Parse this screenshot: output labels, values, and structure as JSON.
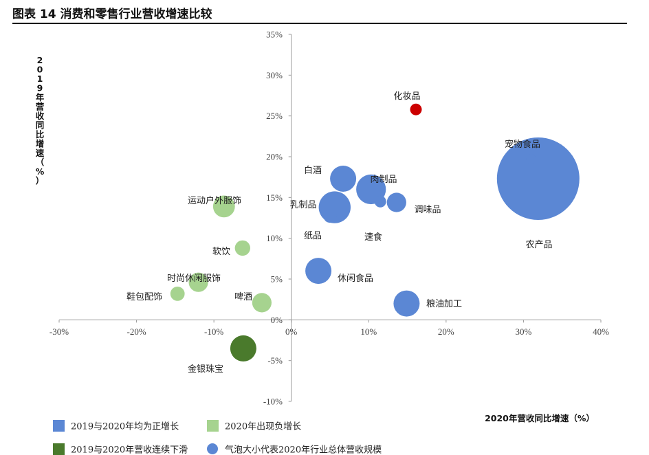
{
  "figure": {
    "title": "图表 14 消费和零售行业营收增速比较"
  },
  "chart_data": {
    "type": "scatter",
    "subtype": "bubble",
    "xlabel": "2020年营收同比增速（%）",
    "ylabel": "2019年营收同比增速（%）",
    "xlim": [
      -30,
      40
    ],
    "ylim": [
      -10,
      35
    ],
    "x_ticks": [
      "-30%",
      "-20%",
      "-10%",
      "0%",
      "10%",
      "20%",
      "30%",
      "40%"
    ],
    "y_ticks": [
      "35%",
      "30%",
      "25%",
      "20%",
      "15%",
      "10%",
      "5%",
      "0%",
      "-5%",
      "-10%"
    ],
    "x_tick_values": [
      -30,
      -20,
      -10,
      0,
      10,
      20,
      30,
      40
    ],
    "y_tick_values": [
      35,
      30,
      25,
      20,
      15,
      10,
      5,
      0,
      -5,
      -10
    ],
    "colors": {
      "both_positive": "#5b87d4",
      "negative_2020": "#a6d38f",
      "both_decline": "#4a7a2c",
      "highlight": "#cc0000"
    },
    "points": [
      {
        "label": "化妆品",
        "x": 16.1,
        "y": 25.8,
        "size": 0.2,
        "group": "highlight"
      },
      {
        "label": "宠物食品",
        "x": 31.0,
        "y": 19.7,
        "size": 0.15,
        "group": "both_positive"
      },
      {
        "label": "农产品",
        "x": 31.9,
        "y": 17.3,
        "size": 10.0,
        "group": "both_positive"
      },
      {
        "label": "白酒",
        "x": 6.7,
        "y": 17.3,
        "size": 1.0,
        "group": "both_positive"
      },
      {
        "label": "肉制品",
        "x": 10.3,
        "y": 16.0,
        "size": 1.3,
        "group": "both_positive"
      },
      {
        "label": "调味品",
        "x": 13.6,
        "y": 14.4,
        "size": 0.55,
        "group": "both_positive"
      },
      {
        "label": "乳制品",
        "x": 5.6,
        "y": 13.8,
        "size": 1.5,
        "group": "both_positive"
      },
      {
        "label": "速食",
        "x": 11.5,
        "y": 14.5,
        "size": 0.2,
        "group": "both_positive"
      },
      {
        "label": "纸品",
        "x": 5.0,
        "y": 12.7,
        "size": 0.25,
        "group": "both_positive"
      },
      {
        "label": "休闲食品",
        "x": 3.5,
        "y": 6.0,
        "size": 1.0,
        "group": "both_positive"
      },
      {
        "label": "粮油加工",
        "x": 14.9,
        "y": 2.0,
        "size": 1.0,
        "group": "both_positive"
      },
      {
        "label": "运动户外服饰",
        "x": -8.7,
        "y": 13.9,
        "size": 0.7,
        "group": "negative_2020"
      },
      {
        "label": "软饮",
        "x": -6.3,
        "y": 8.8,
        "size": 0.35,
        "group": "negative_2020"
      },
      {
        "label": "时尚休闲服饰",
        "x": -12.0,
        "y": 4.6,
        "size": 0.55,
        "group": "negative_2020"
      },
      {
        "label": "鞋包配饰",
        "x": -14.7,
        "y": 3.2,
        "size": 0.3,
        "group": "negative_2020"
      },
      {
        "label": "啤酒",
        "x": -3.8,
        "y": 2.1,
        "size": 0.55,
        "group": "negative_2020"
      },
      {
        "label": "金银珠宝",
        "x": -6.2,
        "y": -3.5,
        "size": 1.0,
        "group": "both_decline"
      }
    ],
    "legend": [
      {
        "label": "2019与2020年均为正增长",
        "shape": "square",
        "group": "both_positive"
      },
      {
        "label": "2020年出现负增长",
        "shape": "square",
        "group": "negative_2020"
      },
      {
        "label": "2019与2020年营收连续下滑",
        "shape": "square",
        "group": "both_decline"
      },
      {
        "label": "气泡大小代表2020年行业总体营收规模",
        "shape": "circle",
        "group": "both_positive"
      }
    ]
  }
}
